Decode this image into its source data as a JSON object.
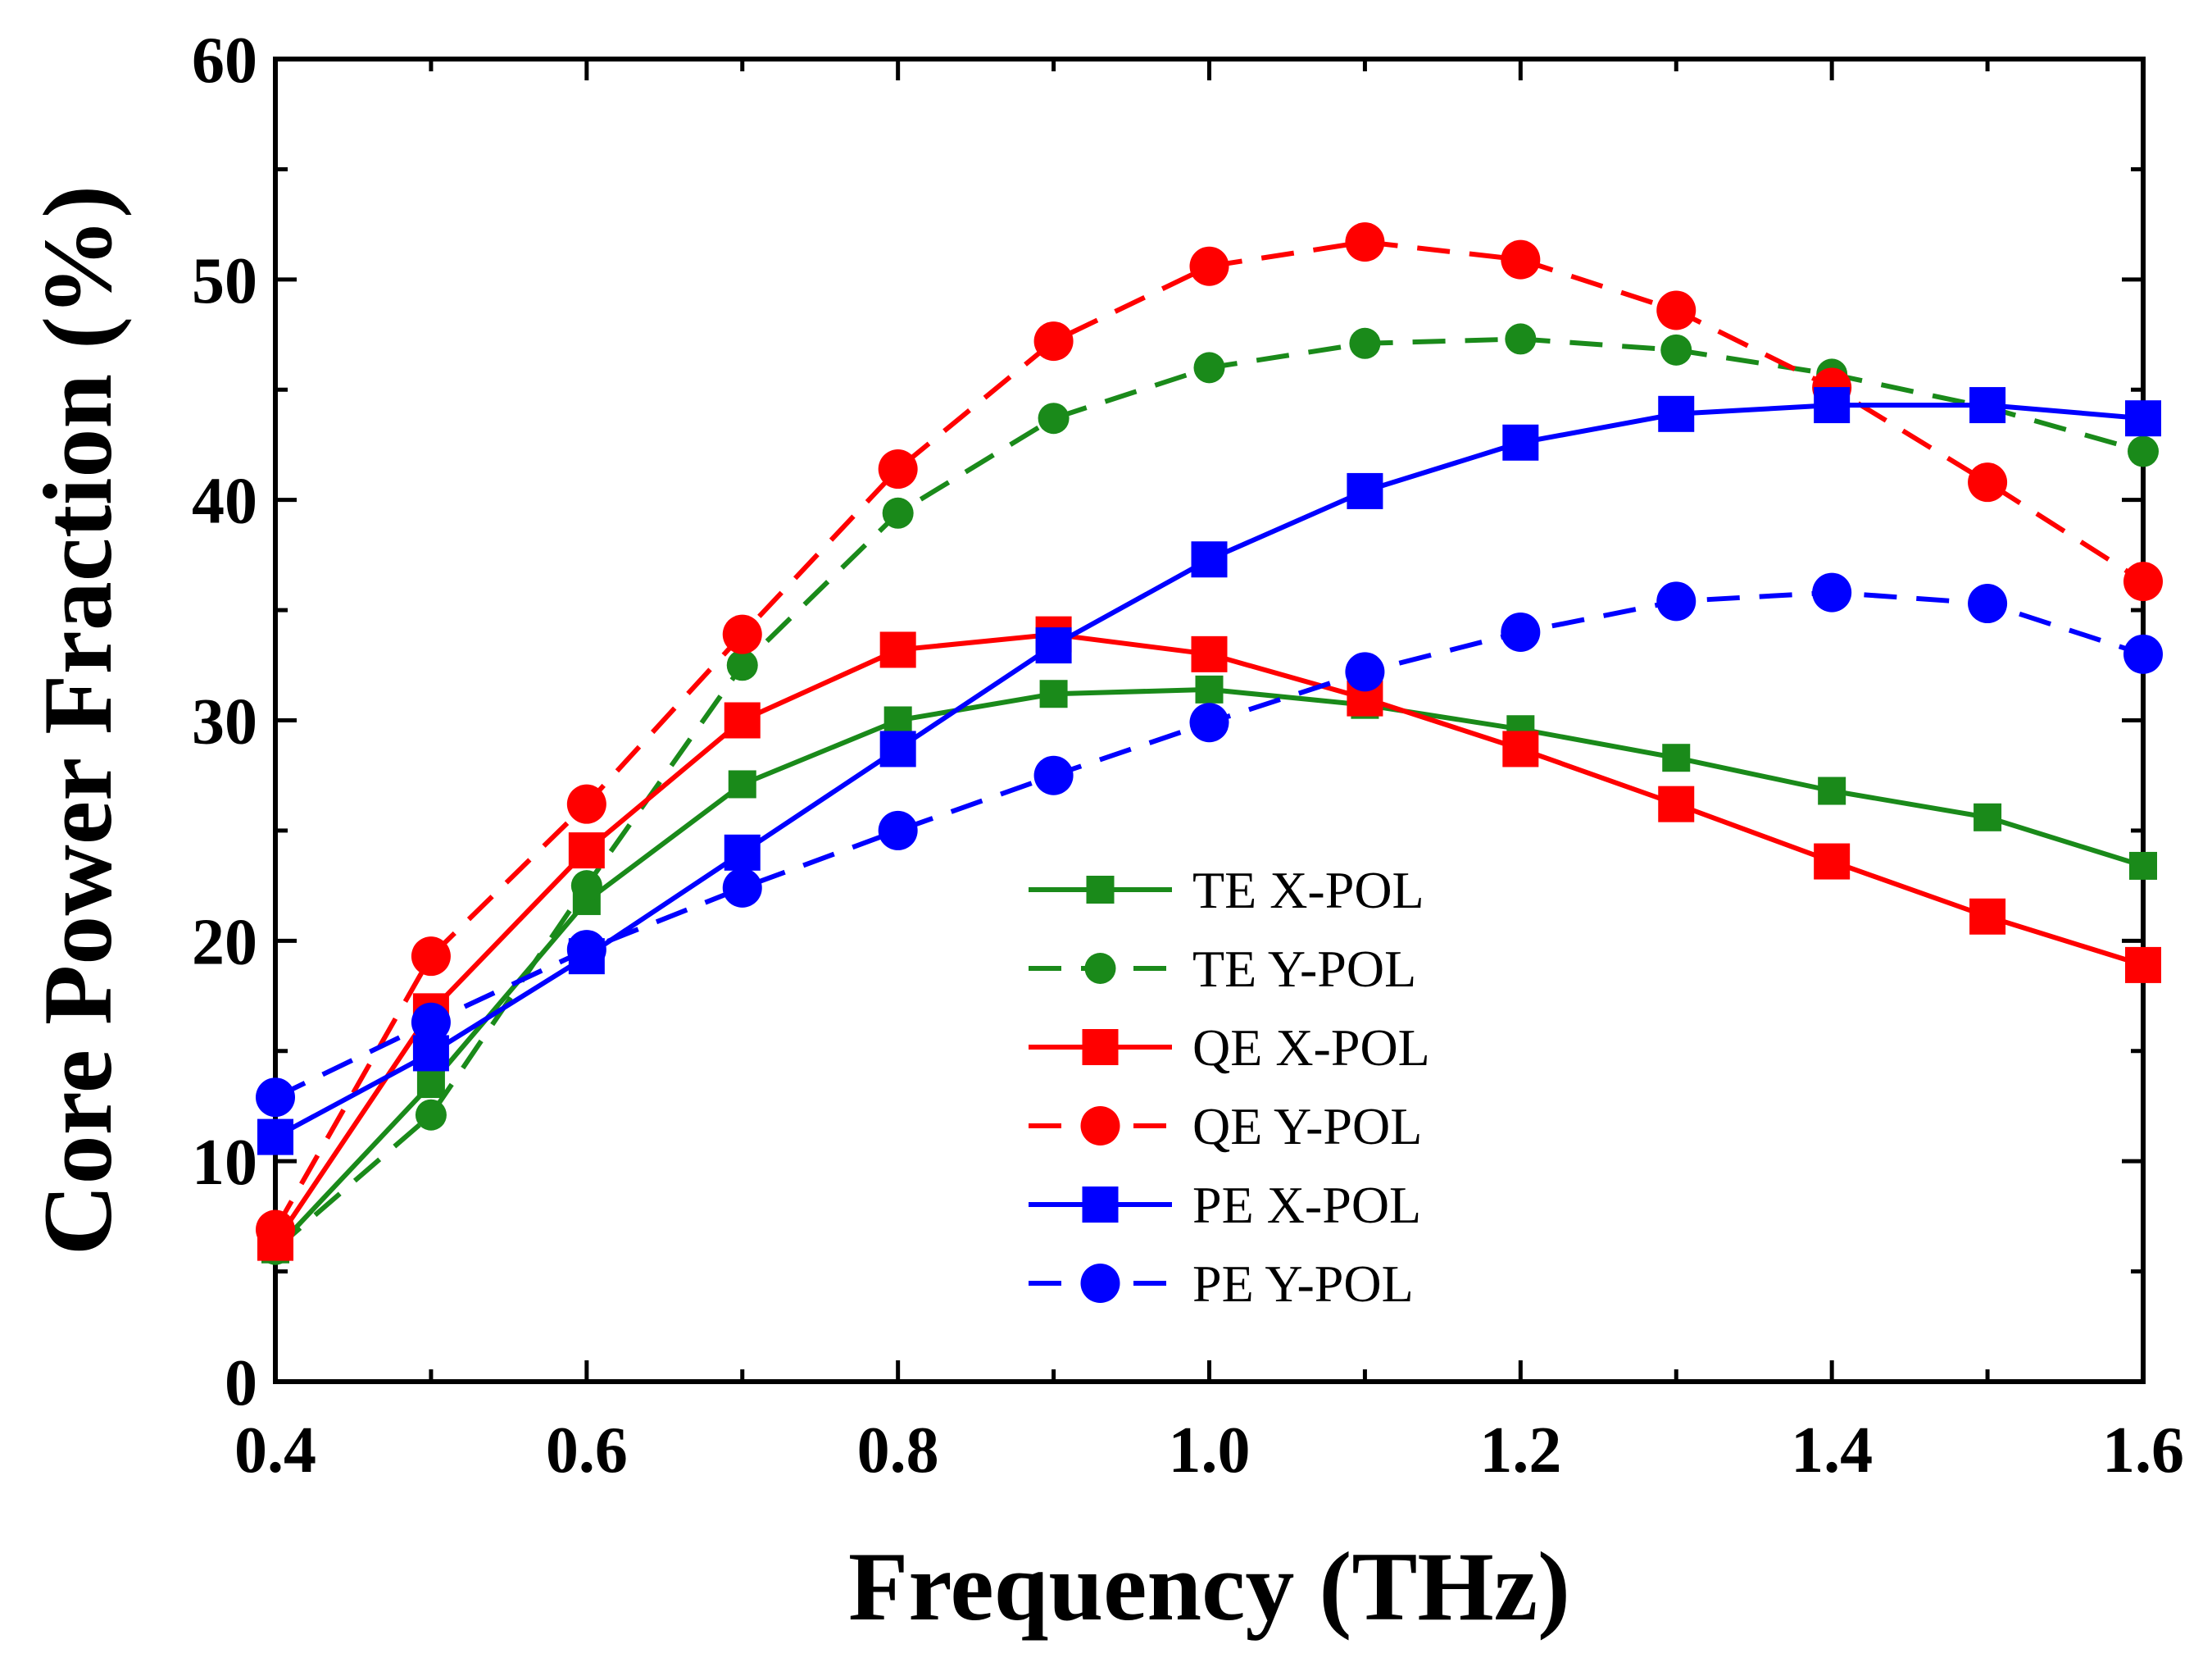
{
  "chart_data": {
    "type": "line",
    "title": "",
    "xlabel": "Frequency (THz)",
    "ylabel": "Core Power Fraction (%)",
    "xlim": [
      0.4,
      1.6
    ],
    "ylim": [
      0,
      60
    ],
    "xticks": [
      0.4,
      0.6,
      0.8,
      1.0,
      1.2,
      1.4,
      1.6
    ],
    "xtick_labels": [
      "0.4",
      "0.6",
      "0.8",
      "1.0",
      "1.2",
      "1.4",
      "1.6"
    ],
    "yticks": [
      0,
      10,
      20,
      30,
      40,
      50,
      60
    ],
    "ytick_labels": [
      "0",
      "10",
      "20",
      "30",
      "40",
      "50",
      "60"
    ],
    "grid": false,
    "legend_position": "lower-center-right",
    "x": [
      0.4,
      0.5,
      0.6,
      0.7,
      0.8,
      0.9,
      1.0,
      1.1,
      1.2,
      1.3,
      1.4,
      1.5,
      1.6
    ],
    "series": [
      {
        "name": "TE X-POL",
        "color": "#1a8a1a",
        "dash": "solid",
        "marker": "square-small",
        "values": [
          6.0,
          13.5,
          21.8,
          27.1,
          30.0,
          31.2,
          31.4,
          30.7,
          29.6,
          28.3,
          26.8,
          25.6,
          23.4
        ]
      },
      {
        "name": "TE Y-POL",
        "color": "#1a8a1a",
        "dash": "dashed",
        "marker": "circle-small",
        "values": [
          6.0,
          12.1,
          22.5,
          32.5,
          39.4,
          43.7,
          46.0,
          47.1,
          47.3,
          46.8,
          45.7,
          44.2,
          42.2
        ]
      },
      {
        "name": "QE X-POL",
        "color": "#ff0000",
        "dash": "solid",
        "marker": "square",
        "values": [
          6.3,
          16.8,
          24.1,
          30.0,
          33.2,
          33.9,
          33.0,
          31.0,
          28.7,
          26.2,
          23.6,
          21.1,
          18.9
        ]
      },
      {
        "name": "QE Y-POL",
        "color": "#ff0000",
        "dash": "dashed",
        "marker": "circle",
        "values": [
          6.9,
          19.3,
          26.2,
          33.9,
          41.4,
          47.2,
          50.6,
          51.7,
          50.9,
          48.6,
          45.1,
          40.8,
          36.3
        ]
      },
      {
        "name": "PE X-POL",
        "color": "#0000ff",
        "dash": "solid",
        "marker": "square",
        "values": [
          11.1,
          14.9,
          19.3,
          24.0,
          28.7,
          33.4,
          37.3,
          40.4,
          42.6,
          43.9,
          44.3,
          44.3,
          43.7
        ]
      },
      {
        "name": "PE Y-POL",
        "color": "#0000ff",
        "dash": "dashed",
        "marker": "circle",
        "values": [
          12.9,
          16.3,
          19.6,
          22.4,
          25.0,
          27.5,
          29.9,
          32.2,
          34.0,
          35.4,
          35.8,
          35.3,
          33.0
        ]
      }
    ]
  }
}
